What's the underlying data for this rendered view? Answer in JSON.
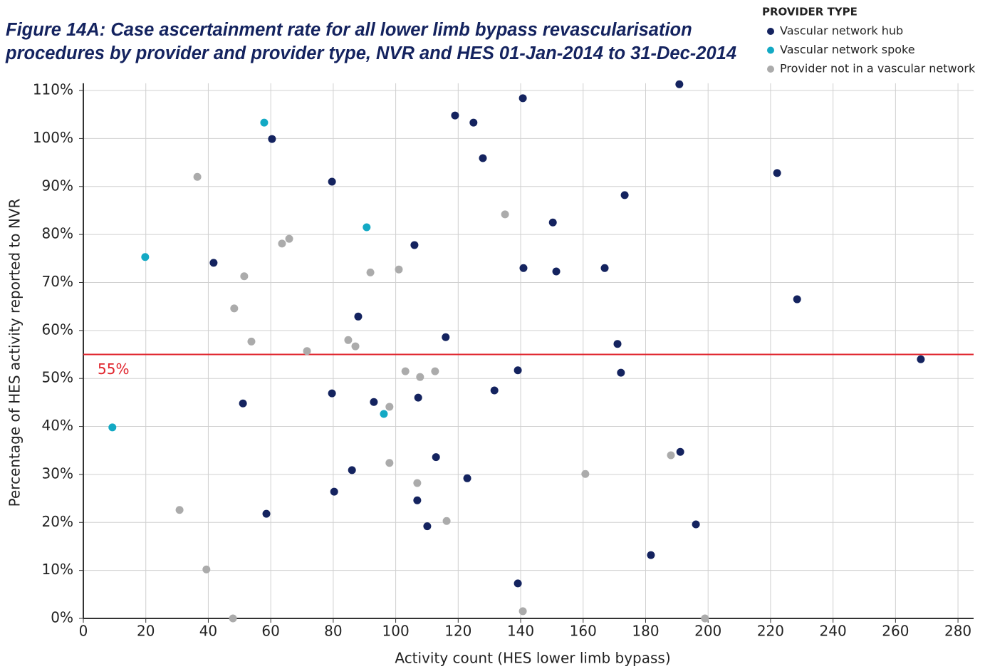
{
  "chart_data": {
    "type": "scatter",
    "title": "Figure 14A: Case ascertainment rate for all lower limb bypass revascularisation procedures by provider and provider type, NVR and HES 01-Jan-2014 to 31-Dec-2014",
    "x_label": "Activity count (HES lower limb bypass)",
    "y_label": "Percentage of HES activity reported to NVR",
    "legend_title": "PROVIDER TYPE",
    "legend": "top-right",
    "grid": true,
    "xlim": [
      0,
      285
    ],
    "ylim": [
      0,
      111.5
    ],
    "xticks": [
      0,
      20,
      40,
      60,
      80,
      100,
      120,
      140,
      160,
      180,
      200,
      220,
      240,
      260,
      280
    ],
    "yticks": [
      {
        "value": 0,
        "label": "0%"
      },
      {
        "value": 10,
        "label": "10%"
      },
      {
        "value": 20,
        "label": "20%"
      },
      {
        "value": 30,
        "label": "30%"
      },
      {
        "value": 40,
        "label": "40%"
      },
      {
        "value": 50,
        "label": "50%"
      },
      {
        "value": 60,
        "label": "60%"
      },
      {
        "value": 70,
        "label": "70%"
      },
      {
        "value": 80,
        "label": "80%"
      },
      {
        "value": 90,
        "label": "90%"
      },
      {
        "value": 100,
        "label": "100%"
      },
      {
        "value": 110,
        "label": "110%"
      }
    ],
    "reference_line": {
      "value": 55,
      "label": "55%",
      "color": "#e0242c"
    },
    "series": [
      {
        "name": "Vascular network hub",
        "color": "#14235f",
        "x": [
          190.8,
          140.7,
          119.0,
          124.9,
          60.4,
          127.9,
          79.6,
          222.1,
          173.3,
          150.3,
          106.0,
          41.7,
          140.9,
          151.4,
          166.9,
          228.5,
          88.0,
          116.0,
          171.0,
          268.1,
          139.1,
          172.1,
          131.6,
          79.6,
          107.2,
          51.1,
          93.0,
          112.9,
          191.1,
          86.0,
          122.9,
          80.3,
          106.9,
          58.6,
          110.1,
          196.1,
          181.7,
          139.1
        ],
        "values": [
          111.3,
          108.4,
          104.8,
          103.3,
          99.9,
          95.9,
          91.0,
          92.8,
          88.2,
          82.5,
          77.8,
          74.1,
          73.0,
          72.3,
          73.0,
          66.5,
          62.9,
          58.6,
          57.2,
          54.0,
          51.7,
          51.2,
          47.5,
          46.9,
          46.0,
          44.8,
          45.1,
          33.6,
          34.7,
          30.9,
          29.2,
          26.4,
          24.6,
          21.8,
          19.2,
          19.6,
          13.2,
          7.3
        ]
      },
      {
        "name": "Vascular network spoke",
        "color": "#13a9c4",
        "x": [
          57.9,
          19.8,
          90.7,
          96.2,
          9.3
        ],
        "values": [
          103.3,
          75.3,
          81.5,
          42.6,
          39.8
        ]
      },
      {
        "name": "Provider not in a vascular network",
        "color": "#ababab",
        "x": [
          36.5,
          65.9,
          63.6,
          51.5,
          135.0,
          91.9,
          101.0,
          48.3,
          53.8,
          71.6,
          84.8,
          87.1,
          103.1,
          107.8,
          112.6,
          98.0,
          98.0,
          106.9,
          116.3,
          160.7,
          188.1,
          30.8,
          39.4,
          47.9,
          140.7,
          199.0
        ],
        "values": [
          92.0,
          79.1,
          78.1,
          71.3,
          84.2,
          72.1,
          72.7,
          64.6,
          57.7,
          55.7,
          58.0,
          56.7,
          51.5,
          50.3,
          51.5,
          44.1,
          32.4,
          28.2,
          20.3,
          30.1,
          34.0,
          22.6,
          10.2,
          0,
          1.5,
          0
        ]
      }
    ]
  }
}
